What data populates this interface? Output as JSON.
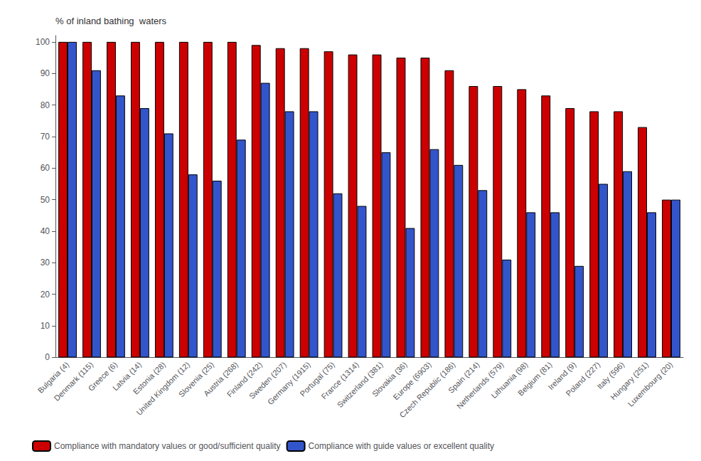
{
  "chart_data": {
    "type": "bar",
    "ylabel": "% of inland bathing  waters",
    "categories": [
      "Bulgaria (4)",
      "Denmark (115)",
      "Greece (6)",
      "Latvia (14)",
      "Estonia (28)",
      "United Kingdom (12)",
      "Slovenia (25)",
      "Austria (268)",
      "Finland (242)",
      "Sweden (207)",
      "Germany (1915)",
      "Portugal (75)",
      "France (1314)",
      "Switzerland (381)",
      "Slovakia (36)",
      "Europe (6903)",
      "Czech Republic (186)",
      "Spain (214)",
      "Netherlands (579)",
      "Lithuania (98)",
      "Belgium (81)",
      "Ireland (9)",
      "Poland (227)",
      "Italy (596)",
      "Hungary (251)",
      "Luxembourg (20)"
    ],
    "series": [
      {
        "name": "Compliance with mandatory values or good/sufficient quality",
        "color": "#cc0000",
        "values": [
          100,
          100,
          100,
          100,
          100,
          100,
          100,
          100,
          99,
          98,
          98,
          97,
          96,
          96,
          95,
          95,
          91,
          86,
          86,
          85,
          83,
          79,
          78,
          78,
          73,
          50
        ]
      },
      {
        "name": "Compliance with guide values or excellent quality",
        "color": "#3355cc",
        "values": [
          100,
          91,
          83,
          79,
          71,
          58,
          56,
          69,
          87,
          78,
          78,
          52,
          48,
          65,
          41,
          66,
          61,
          53,
          31,
          46,
          46,
          29,
          55,
          59,
          46,
          50
        ]
      }
    ],
    "ylim": [
      0,
      102
    ],
    "yticks": [
      0,
      10,
      20,
      30,
      40,
      50,
      60,
      70,
      80,
      90,
      100
    ],
    "grid": false,
    "legend": "lower left"
  }
}
